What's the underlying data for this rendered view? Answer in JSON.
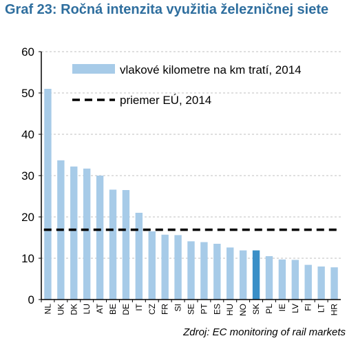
{
  "title": "Graf 23: Ročná intenzita využitia železničnej siete",
  "source": "Zdroj: EC monitoring of rail markets",
  "colors": {
    "bar": "#a7cbe8",
    "highlight": "#3a8fc7",
    "average": "#000000",
    "grid": "#bfbfbf",
    "title": "#2e6e9e"
  },
  "chart_data": {
    "type": "bar",
    "categories": [
      "NL",
      "UK",
      "DK",
      "LU",
      "AT",
      "BE",
      "DE",
      "IT",
      "CZ",
      "FR",
      "SI",
      "SE",
      "PT",
      "ES",
      "HU",
      "NO",
      "SK",
      "PL",
      "IE",
      "LV",
      "FI",
      "LT",
      "HR"
    ],
    "series": [
      {
        "name": "vlakové kilometre na km tratí, 2014",
        "values": [
          51,
          33.7,
          32.2,
          31.7,
          30,
          26.6,
          26.5,
          21,
          16.5,
          15.7,
          15.6,
          14.1,
          13.9,
          13.5,
          12.6,
          11.9,
          11.9,
          10.5,
          9.7,
          9.6,
          8.4,
          8.0,
          7.8
        ]
      }
    ],
    "highlight_category": "SK",
    "reference_line": {
      "name": "priemer EÚ, 2014",
      "value": 16.9,
      "style": "dashed"
    },
    "ylim": [
      0,
      60
    ],
    "yticks": [
      0,
      10,
      20,
      30,
      40,
      50,
      60
    ],
    "grid": true,
    "legend_position": "top"
  }
}
